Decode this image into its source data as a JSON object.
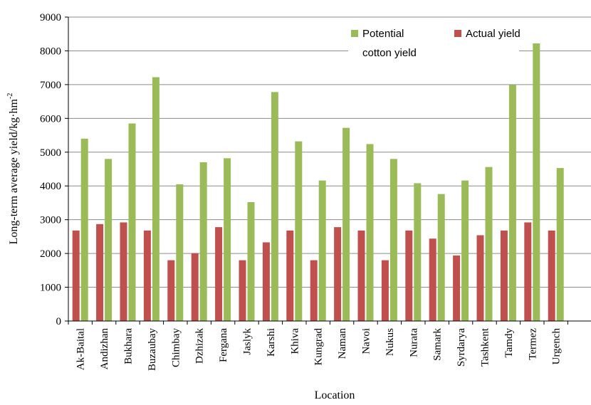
{
  "chart_data": {
    "type": "bar",
    "title": "",
    "xlabel": "Location",
    "ylabel": "Long-term average yield/kg·hm",
    "ylabel_superscript": "-2",
    "ylim": [
      0,
      9000
    ],
    "yticks": [
      0,
      1000,
      2000,
      3000,
      4000,
      5000,
      6000,
      7000,
      8000,
      9000
    ],
    "grid": true,
    "legend_position": "top-right",
    "categories": [
      "Ak-Baital",
      "Andizhan",
      "Bukhara",
      "Buzaubay",
      "Chimbay",
      "Dzhizak",
      "Fergana",
      "Jaslyk",
      "Karshi",
      "Khiva",
      "Kungrad",
      "Naman",
      "Navoi",
      "Nukus",
      "Nurata",
      "Samark",
      "Syrdarya",
      "Tashkent",
      "Tamdy",
      "Termez",
      "Urgench"
    ],
    "series": [
      {
        "name_lines": [
          "Potential",
          "cotton yield"
        ],
        "color": "#9bbb59",
        "values": [
          5400,
          4800,
          5850,
          7220,
          4050,
          4700,
          4820,
          3520,
          6780,
          5320,
          4160,
          5720,
          5240,
          4800,
          4080,
          3760,
          4160,
          4560,
          7000,
          8220,
          4530
        ]
      },
      {
        "name": "Actual yield",
        "color": "#c0504d",
        "values": [
          2680,
          2870,
          2920,
          2680,
          1800,
          2010,
          2780,
          1800,
          2330,
          2680,
          1800,
          2780,
          2680,
          1800,
          2680,
          2440,
          1940,
          2540,
          2680,
          2920,
          2680
        ]
      }
    ]
  }
}
